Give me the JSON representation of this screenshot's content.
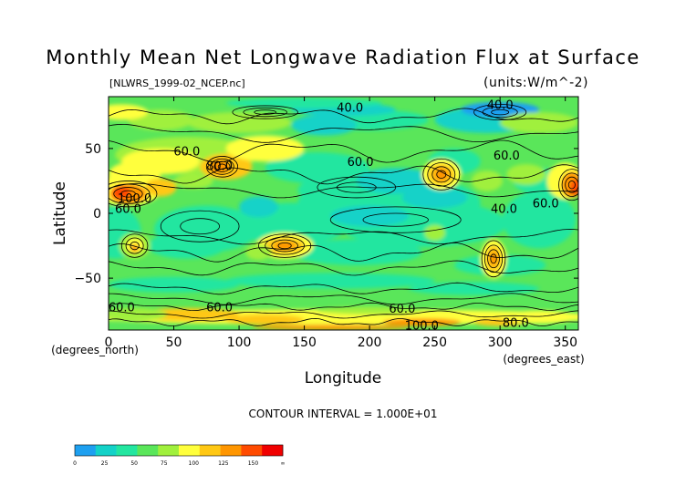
{
  "chart_data": {
    "type": "heatmap",
    "title": "Monthly Mean Net Longwave Radiation Flux at Surface",
    "source_label": "[NLWRS_1999-02_NCEP.nc]",
    "units_label": "(units:W/m^-2)",
    "xlabel": "Longitude",
    "ylabel": "Latitude",
    "x_unit_label": "(degrees_east)",
    "y_unit_label": "(degrees_north)",
    "xlim": [
      0,
      360
    ],
    "ylim": [
      -90,
      90
    ],
    "x_ticks": [
      0,
      50,
      100,
      150,
      200,
      250,
      300,
      350
    ],
    "x_tick_labels": [
      "0",
      "50",
      "100",
      "150",
      "200",
      "250",
      "300",
      "350"
    ],
    "y_ticks": [
      50,
      0,
      -50
    ],
    "y_tick_labels": [
      "50",
      "0",
      "−50"
    ],
    "contour_interval_text": "CONTOUR INTERVAL = 1.000E+01",
    "contour_labels": [
      {
        "text": "40.0",
        "lon": 185,
        "lat": 82
      },
      {
        "text": "40.0",
        "lon": 300,
        "lat": 84
      },
      {
        "text": "60.0",
        "lon": 60,
        "lat": 48
      },
      {
        "text": "60.0",
        "lon": 193,
        "lat": 40
      },
      {
        "text": "60.0",
        "lon": 305,
        "lat": 45
      },
      {
        "text": "80.0",
        "lon": 85,
        "lat": 37
      },
      {
        "text": "100.0",
        "lon": 20,
        "lat": 12
      },
      {
        "text": "60.0",
        "lon": 15,
        "lat": 4
      },
      {
        "text": "40.0",
        "lon": 303,
        "lat": 4
      },
      {
        "text": "60.0",
        "lon": 335,
        "lat": 8
      },
      {
        "text": "60.0",
        "lon": 10,
        "lat": -72
      },
      {
        "text": "60.0",
        "lon": 85,
        "lat": -72
      },
      {
        "text": "60.0",
        "lon": 225,
        "lat": -73
      },
      {
        "text": "100.0",
        "lon": 240,
        "lat": -86
      },
      {
        "text": "80.0",
        "lon": 312,
        "lat": -84
      }
    ],
    "colorbar": {
      "levels": [
        "0",
        "25",
        "50",
        "75",
        "100",
        "125",
        "150",
        "∞"
      ],
      "colors": [
        "#1ea0f0",
        "#14d2c8",
        "#23e6a0",
        "#5ae65a",
        "#a0f03c",
        "#ffff3c",
        "#ffc814",
        "#ff9600",
        "#ff4b00",
        "#f00000"
      ]
    },
    "grid": false
  }
}
